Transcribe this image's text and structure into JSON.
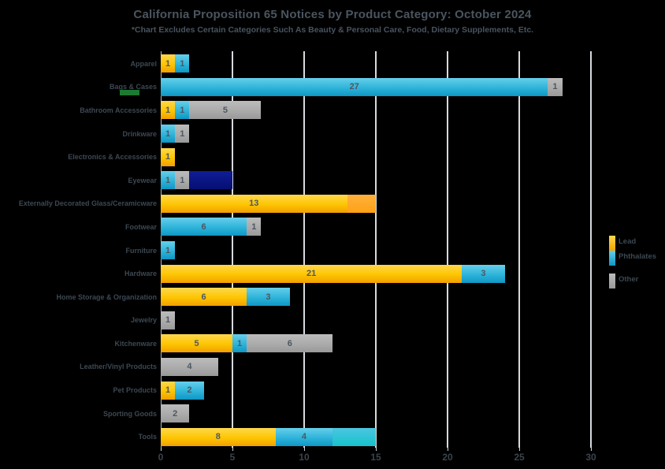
{
  "title": "California Proposition 65 Notices by Product Category: October 2024",
  "subtitle": "*Chart Excludes Certain Categories Such As Beauty & Personal Care, Food, Dietary Supplements, Etc.",
  "colors": {
    "lead": "#FDC500",
    "phthalates": "#2EB3DA",
    "other": "#A9A9A9",
    "orange_accent": "#FFA114",
    "navy_accent": "#0B1787",
    "light_blue_accent": "#2CC4D6",
    "gridline": "#E9EDF0",
    "background": "#000000",
    "text": "#4A5560",
    "green_mark": "#1D7A33"
  },
  "legend": {
    "position": "right",
    "items": [
      {
        "label": "Lead",
        "color_key": "lead"
      },
      {
        "label": "Phthalates",
        "color_key": "phthalates"
      },
      {
        "label": "Other",
        "color_key": "other"
      }
    ]
  },
  "chart_data": {
    "type": "bar",
    "orientation": "horizontal",
    "title": "California Proposition 65 Notices by Product Category: October 2024",
    "xlabel": "",
    "ylabel": "",
    "xlim": [
      0,
      30
    ],
    "x_ticks": [
      0,
      5,
      10,
      15,
      20,
      25,
      30
    ],
    "grid": true,
    "legend_position": "right",
    "series_names": [
      "Lead",
      "Phthalates",
      "Other"
    ],
    "rows": [
      {
        "category": "Apparel",
        "segments": [
          {
            "series": "Lead",
            "value": 1,
            "label": "1",
            "color_key": "lead"
          },
          {
            "series": "Phthalates",
            "value": 1,
            "label": "1",
            "color_key": "phthalates"
          }
        ]
      },
      {
        "category": "Bags & Cases",
        "segments": [
          {
            "series": "Phthalates",
            "value": 27,
            "label": "27",
            "color_key": "phthalates"
          },
          {
            "series": "Other",
            "value": 1,
            "label": "1",
            "color_key": "other"
          }
        ]
      },
      {
        "category": "Bathroom Accessories",
        "segments": [
          {
            "series": "Lead",
            "value": 1,
            "label": "1",
            "color_key": "lead"
          },
          {
            "series": "Phthalates",
            "value": 1,
            "label": "1",
            "color_key": "phthalates"
          },
          {
            "series": "Other",
            "value": 5,
            "label": "5",
            "color_key": "other"
          }
        ]
      },
      {
        "category": "Drinkware",
        "segments": [
          {
            "series": "Phthalates",
            "value": 1,
            "label": "1",
            "color_key": "phthalates"
          },
          {
            "series": "Other",
            "value": 1,
            "label": "1",
            "color_key": "other"
          }
        ]
      },
      {
        "category": "Electronics & Accessories",
        "segments": [
          {
            "series": "Lead",
            "value": 1,
            "label": "1",
            "color_key": "lead"
          }
        ]
      },
      {
        "category": "Eyewear",
        "segments": [
          {
            "series": "Phthalates",
            "value": 1,
            "label": "1",
            "color_key": "phthalates"
          },
          {
            "series": "Other",
            "value": 1,
            "label": "1",
            "color_key": "other"
          },
          {
            "series": "",
            "value": 3,
            "label": "",
            "color_key": "navy"
          }
        ]
      },
      {
        "category": "Externally Decorated Glass/Ceramicware",
        "segments": [
          {
            "series": "Lead",
            "value": 13,
            "label": "13",
            "color_key": "lead"
          },
          {
            "series": "",
            "value": 2,
            "label": "",
            "color_key": "orange"
          }
        ]
      },
      {
        "category": "Footwear",
        "segments": [
          {
            "series": "Phthalates",
            "value": 6,
            "label": "6",
            "color_key": "phthalates"
          },
          {
            "series": "Other",
            "value": 1,
            "label": "1",
            "color_key": "other"
          }
        ]
      },
      {
        "category": "Furniture",
        "segments": [
          {
            "series": "Phthalates",
            "value": 1,
            "label": "1",
            "color_key": "phthalates"
          }
        ]
      },
      {
        "category": "Hardware",
        "segments": [
          {
            "series": "Lead",
            "value": 21,
            "label": "21",
            "color_key": "lead"
          },
          {
            "series": "Phthalates",
            "value": 3,
            "label": "3",
            "color_key": "phthalates"
          }
        ]
      },
      {
        "category": "Home Storage & Organization",
        "segments": [
          {
            "series": "Lead",
            "value": 6,
            "label": "6",
            "color_key": "lead"
          },
          {
            "series": "Phthalates",
            "value": 3,
            "label": "3",
            "color_key": "phthalates"
          }
        ]
      },
      {
        "category": "Jewelry",
        "segments": [
          {
            "series": "Other",
            "value": 1,
            "label": "1",
            "color_key": "other"
          }
        ]
      },
      {
        "category": "Kitchenware",
        "segments": [
          {
            "series": "Lead",
            "value": 5,
            "label": "5",
            "color_key": "lead"
          },
          {
            "series": "Phthalates",
            "value": 1,
            "label": "1",
            "color_key": "phthalates"
          },
          {
            "series": "Other",
            "value": 6,
            "label": "6",
            "color_key": "other"
          }
        ]
      },
      {
        "category": "Leather/Vinyl Products",
        "segments": [
          {
            "series": "Other",
            "value": 4,
            "label": "4",
            "color_key": "other"
          }
        ]
      },
      {
        "category": "Pet Products",
        "segments": [
          {
            "series": "Lead",
            "value": 1,
            "label": "1",
            "color_key": "lead"
          },
          {
            "series": "Phthalates",
            "value": 2,
            "label": "2",
            "color_key": "phthalates"
          }
        ]
      },
      {
        "category": "Sporting Goods",
        "segments": [
          {
            "series": "Other",
            "value": 2,
            "label": "2",
            "color_key": "other"
          }
        ]
      },
      {
        "category": "Tools",
        "segments": [
          {
            "series": "Lead",
            "value": 8,
            "label": "8",
            "color_key": "lead"
          },
          {
            "series": "Phthalates",
            "value": 4,
            "label": "4",
            "color_key": "phthalates"
          },
          {
            "series": "",
            "value": 3,
            "label": "",
            "color_key": "light_blue"
          }
        ]
      }
    ]
  }
}
